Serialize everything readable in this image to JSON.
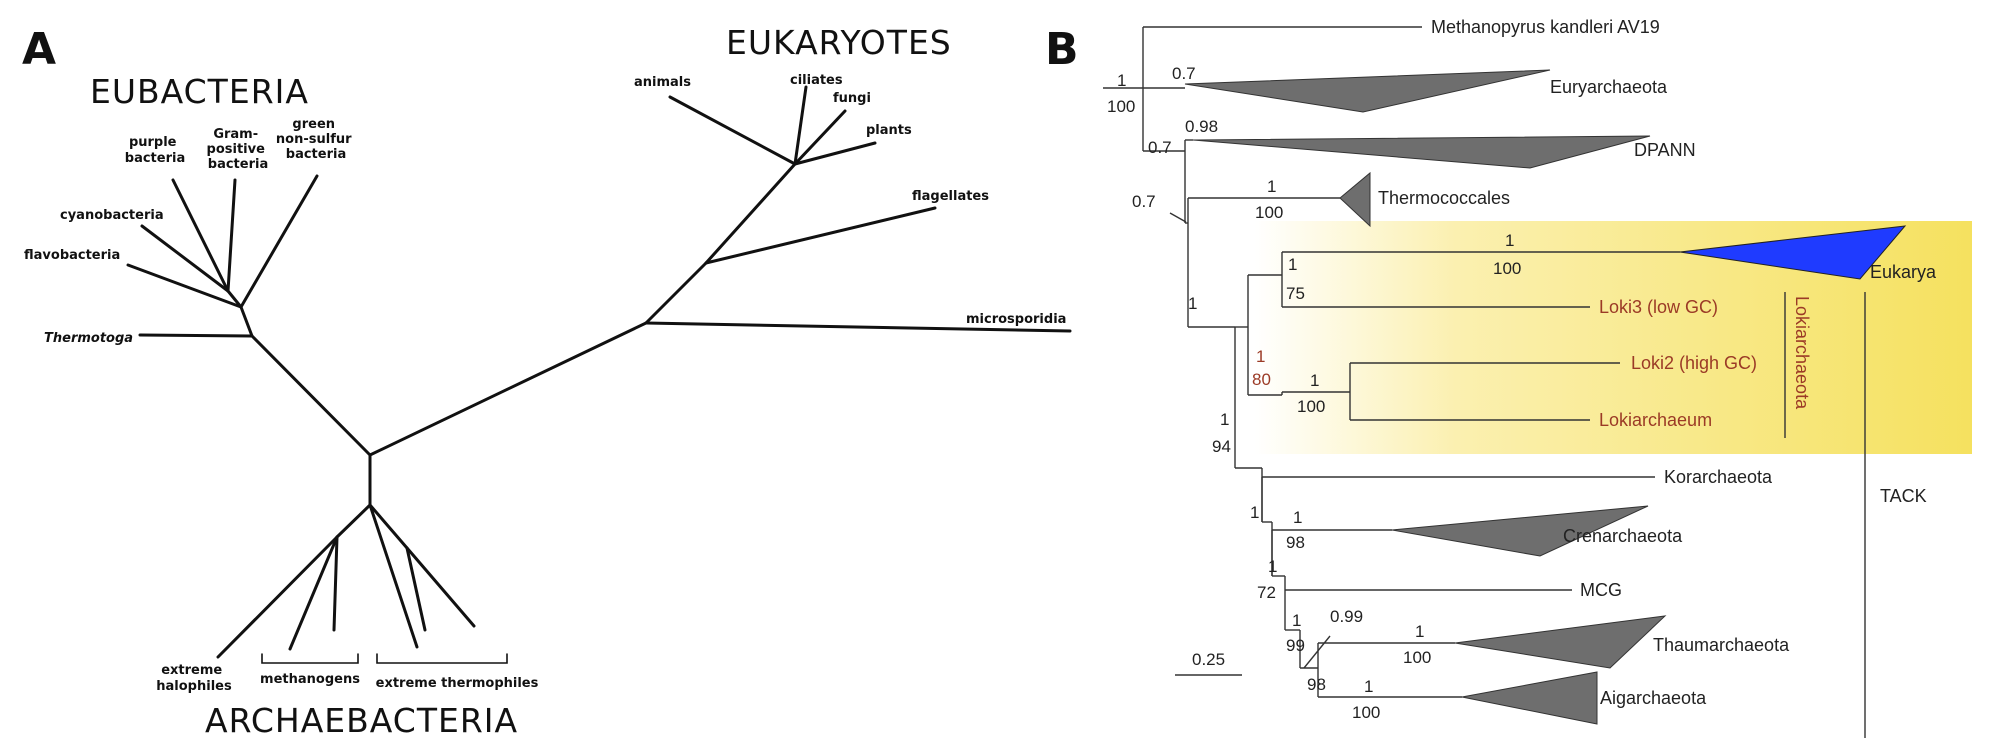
{
  "panelA": {
    "letter": "A",
    "groups": {
      "eubacteria": "EUBACTERIA",
      "eukaryotes": "EUKARYOTES",
      "archaebacteria": "ARCHAEBACTERIA"
    },
    "taxa": {
      "purple": [
        "purple",
        "bacteria"
      ],
      "gram": [
        "Gram-",
        "positive",
        "bacteria"
      ],
      "green": [
        "green",
        "non-sulfur",
        "bacteria"
      ],
      "cyanobacteria": "cyanobacteria",
      "flavobacteria": "flavobacteria",
      "thermotoga": "Thermotoga",
      "animals": "animals",
      "ciliates": "ciliates",
      "fungi": "fungi",
      "plants": "plants",
      "flagellates": "flagellates",
      "microsporidia": "microsporidia",
      "halophiles": [
        "extreme",
        "halophiles"
      ],
      "methanogens": "methanogens",
      "thermophiles": "extreme thermophiles"
    }
  },
  "panelB": {
    "letter": "B",
    "taxa": {
      "methanopyrus": "Methanopyrus kandleri AV19",
      "euryarchaeota": "Euryarchaeota",
      "dpann": "DPANN",
      "thermococcales": "Thermococcales",
      "eukarya": "Eukarya",
      "loki3": "Loki3 (low GC)",
      "loki2": "Loki2 (high GC)",
      "lokiarchaeum": "Lokiarchaeum",
      "lokiarchaeota": "Lokiarchaeota",
      "korarchaeota": "Korarchaeota",
      "crenarchaeota": "Crenarchaeota",
      "mcg": "MCG",
      "thaumarchaeota": "Thaumarchaeota",
      "aigarchaeota": "Aigarchaeota",
      "tack": "TACK"
    },
    "support": {
      "root_pp": "1",
      "root_bs": "100",
      "eury_pp": "0.7",
      "dpann_node": "0.7",
      "dpann_pp": "0.98",
      "thermo_node": "0.7",
      "thermo_pp": "1",
      "thermo_bs": "100",
      "main_node": "1",
      "eukarya_pp": "1",
      "eukarya_bs": "100",
      "euk_loki3_pp": "1",
      "euk_loki3_bs": "75",
      "asgard_pp": "1",
      "asgard_bs": "80",
      "loki2_pp": "1",
      "loki2_bs": "100",
      "asgard_tack_pp": "1",
      "asgard_tack_bs": "94",
      "kor_node": "1",
      "cren_pp": "1",
      "cren_bs": "98",
      "mcg_pp": "1",
      "mcg_bs": "72",
      "thaum_aig_pp": "1",
      "thaum_aig_bs": "99",
      "thaum_node_pp": "0.99",
      "thaum_node_bs": "98",
      "thaum_pp": "1",
      "thaum_bs": "100",
      "aig_pp": "1",
      "aig_bs": "100"
    },
    "scale_bar": "0.25",
    "colors": {
      "highlight": "#f5e15f",
      "eukarya": "#1f3bff",
      "collapsed": "#6e6e6e",
      "loki_text": "#9b3a26"
    }
  }
}
